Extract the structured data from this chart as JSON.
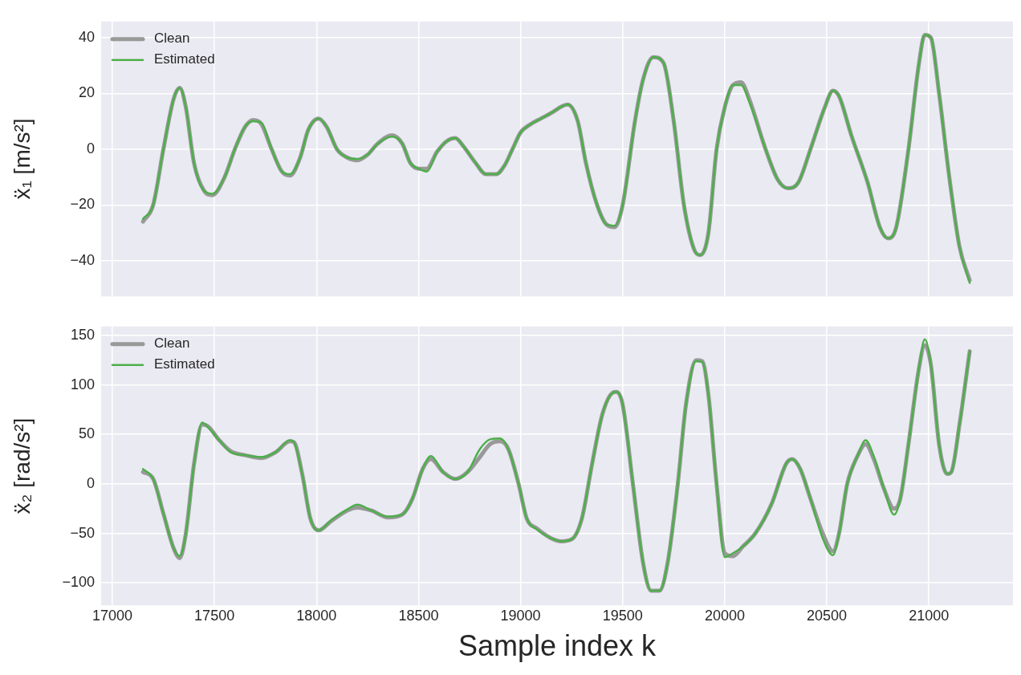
{
  "chart_data": [
    {
      "type": "line",
      "ylabel": "ẍ₁ [m/s²]",
      "xlim": [
        16945,
        21412
      ],
      "xticks": [
        17000,
        17500,
        18000,
        18500,
        19000,
        19500,
        20000,
        20500,
        21000
      ],
      "ylim": [
        -52.8,
        45.8
      ],
      "yticks": [
        -40,
        -20,
        0,
        20,
        40
      ],
      "grid": true,
      "legend": "top left",
      "tick_labels": "y",
      "x": [
        17150,
        17200,
        17250,
        17300,
        17330,
        17360,
        17400,
        17450,
        17490,
        17550,
        17600,
        17650,
        17690,
        17730,
        17780,
        17830,
        17870,
        17920,
        17960,
        18010,
        18050,
        18100,
        18150,
        18200,
        18250,
        18300,
        18370,
        18420,
        18460,
        18500,
        18540,
        18590,
        18640,
        18680,
        18720,
        18780,
        18830,
        18880,
        18920,
        18960,
        19000,
        19050,
        19100,
        19150,
        19230,
        19280,
        19320,
        19370,
        19420,
        19460,
        19500,
        19560,
        19600,
        19650,
        19700,
        19750,
        19800,
        19850,
        19880,
        19920,
        19960,
        20000,
        20040,
        20080,
        20120,
        20200,
        20260,
        20310,
        20360,
        20420,
        20490,
        20530,
        20560,
        20620,
        20700,
        20760,
        20800,
        20840,
        20900,
        20950,
        20980,
        21010,
        21050,
        21100,
        21150,
        21200
      ],
      "series": [
        {
          "name": "Clean",
          "color": "#999999",
          "values": [
            -26,
            -20,
            0,
            18,
            22,
            15,
            -5,
            -15,
            -16.5,
            -10,
            0,
            8,
            10.5,
            9,
            0,
            -8,
            -9.5,
            -3,
            7,
            11,
            8,
            0,
            -3,
            -4,
            -2,
            2,
            5,
            2,
            -5,
            -7,
            -7,
            -1,
            3,
            4,
            1,
            -5,
            -9,
            -9,
            -6,
            0,
            6,
            9,
            11,
            13,
            16,
            10,
            -5,
            -19,
            -27,
            -28,
            -20,
            10,
            25,
            33,
            31,
            10,
            -20,
            -36,
            -38,
            -30,
            0,
            15,
            23,
            24,
            18,
            0,
            -11,
            -14,
            -12,
            0,
            15,
            21,
            19,
            5,
            -12,
            -28,
            -32,
            -28,
            0,
            30,
            41,
            40,
            20,
            -10,
            -35,
            -47
          ]
        },
        {
          "name": "Estimated",
          "color": "#4daf4a",
          "values": [
            -25,
            -20,
            0,
            18,
            22,
            15,
            -5,
            -15,
            -16,
            -10,
            0,
            8,
            10,
            9.5,
            0,
            -8,
            -9,
            -3,
            7,
            11,
            8,
            0,
            -3,
            -3.5,
            -2,
            2,
            4.5,
            2,
            -5,
            -7,
            -8,
            -1,
            3,
            4,
            1,
            -5,
            -9,
            -9,
            -6,
            0,
            6,
            9,
            11,
            13,
            16,
            10,
            -5,
            -19,
            -27,
            -27.5,
            -20,
            10,
            25,
            33,
            31,
            10,
            -20,
            -36,
            -38,
            -30,
            0,
            15,
            23,
            23,
            17,
            0,
            -11,
            -14,
            -12,
            0,
            15,
            21,
            19,
            5,
            -12,
            -28,
            -32,
            -28,
            0,
            30,
            41,
            40,
            20,
            -10,
            -35,
            -48
          ]
        }
      ]
    },
    {
      "type": "line",
      "xlabel": "Sample index k",
      "ylabel": "ẍ₂ [rad/s²]",
      "xlim": [
        16945,
        21412
      ],
      "xticks": [
        17000,
        17500,
        18000,
        18500,
        19000,
        19500,
        20000,
        20500,
        21000
      ],
      "ylim": [
        -122.7,
        159
      ],
      "yticks": [
        -100,
        -50,
        0,
        50,
        100,
        150
      ],
      "grid": true,
      "legend": "top left",
      "x": [
        17150,
        17200,
        17250,
        17300,
        17330,
        17360,
        17400,
        17440,
        17470,
        17520,
        17580,
        17650,
        17730,
        17800,
        17870,
        17890,
        17930,
        17970,
        18010,
        18070,
        18150,
        18200,
        18270,
        18350,
        18420,
        18470,
        18520,
        18560,
        18620,
        18680,
        18740,
        18800,
        18850,
        18900,
        18940,
        18990,
        19030,
        19080,
        19150,
        19200,
        19250,
        19300,
        19350,
        19400,
        19450,
        19470,
        19500,
        19550,
        19600,
        19640,
        19680,
        19720,
        19770,
        19810,
        19860,
        19890,
        19920,
        19960,
        20000,
        20040,
        20090,
        20150,
        20230,
        20300,
        20330,
        20370,
        20420,
        20480,
        20530,
        20560,
        20600,
        20650,
        20690,
        20730,
        20780,
        20830,
        20860,
        20900,
        20950,
        20980,
        21010,
        21050,
        21090,
        21110,
        21150,
        21200
      ],
      "series": [
        {
          "name": "Clean",
          "color": "#999999",
          "values": [
            12,
            5,
            -30,
            -65,
            -75,
            -50,
            20,
            60,
            58,
            45,
            33,
            29,
            26,
            32,
            43,
            42,
            10,
            -35,
            -47,
            -38,
            -27,
            -24,
            -27,
            -34,
            -31,
            -15,
            15,
            25,
            12,
            5,
            12,
            27,
            40,
            43,
            35,
            0,
            -35,
            -45,
            -55,
            -58,
            -56,
            -35,
            20,
            70,
            92,
            93,
            80,
            0,
            -80,
            -108,
            -108,
            -80,
            0,
            80,
            125,
            124,
            90,
            0,
            -70,
            -73,
            -63,
            -50,
            -20,
            20,
            25,
            15,
            -15,
            -50,
            -68,
            -50,
            0,
            28,
            40,
            25,
            -5,
            -25,
            -15,
            40,
            115,
            140,
            120,
            40,
            10,
            12,
            60,
            134
          ]
        },
        {
          "name": "Estimated",
          "color": "#4daf4a",
          "values": [
            15,
            5,
            -30,
            -65,
            -73,
            -50,
            20,
            62,
            57,
            45,
            32,
            29,
            27,
            32,
            44,
            42,
            10,
            -35,
            -47,
            -37,
            -26,
            -21,
            -27,
            -33,
            -31,
            -15,
            15,
            28,
            12,
            5,
            12,
            35,
            45,
            46,
            35,
            0,
            -35,
            -46,
            -55,
            -58,
            -56,
            -35,
            20,
            70,
            92,
            93,
            80,
            0,
            -80,
            -108,
            -108,
            -80,
            0,
            80,
            124,
            123,
            90,
            0,
            -74,
            -70,
            -63,
            -50,
            -20,
            20,
            25,
            15,
            -15,
            -55,
            -72,
            -50,
            0,
            28,
            44,
            28,
            -5,
            -31,
            -15,
            40,
            115,
            146,
            120,
            40,
            10,
            12,
            60,
            134
          ]
        }
      ]
    }
  ]
}
